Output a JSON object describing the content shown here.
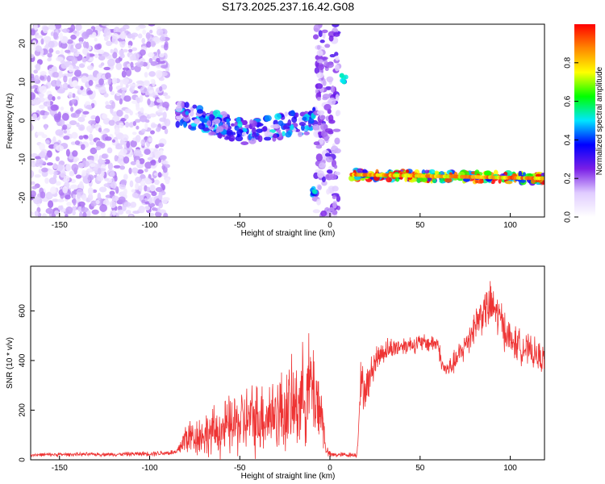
{
  "chart_data": [
    {
      "type": "heatmap",
      "title": "S173.2025.237.16.42.G08",
      "xlabel": "Height of straight line (km)",
      "ylabel": "Frequency (Hz)",
      "xlim": [
        -166,
        119
      ],
      "ylim": [
        -25,
        25
      ],
      "xticks": [
        -150,
        -100,
        -50,
        0,
        50,
        100
      ],
      "yticks": [
        -20,
        -10,
        0,
        10,
        20
      ],
      "colorbar": {
        "label": "Normalized spectral amplitude",
        "range": [
          0,
          1
        ],
        "ticks": [
          "0.0",
          "0.2",
          "0.4",
          "0.6",
          "0.8"
        ],
        "tick_values": [
          0,
          0.2,
          0.4,
          0.6,
          0.8
        ]
      },
      "features": [
        {
          "name": "noise region",
          "x_range": [
            -166,
            -90
          ],
          "freq_range": [
            -25,
            25
          ],
          "amplitude": 0.1
        },
        {
          "name": "wandering line",
          "x_range": [
            -85,
            -8
          ],
          "freq_start": 2,
          "freq_mid": -3,
          "freq_end": 0,
          "amplitude": 0.35
        },
        {
          "name": "spike near zero",
          "x_range": [
            -8,
            5
          ],
          "freq_range": [
            -25,
            25
          ],
          "amplitude": 0.15
        },
        {
          "name": "line at -18 Hz",
          "x": -9,
          "freq": -18.5,
          "amplitude": 0.45
        },
        {
          "name": "line at 11 Hz",
          "x": 8,
          "freq": 11,
          "amplitude": 0.5
        },
        {
          "name": "steady line",
          "x_range": [
            12,
            119
          ],
          "freq_start": -14,
          "freq_end": -15,
          "amplitude": 0.95
        }
      ],
      "colors": {
        "colormap": [
          "#ffffff",
          "#e0ccff",
          "#7a1fe6",
          "#0000ff",
          "#00e6ff",
          "#00ff00",
          "#ffff00",
          "#ff8800",
          "#ff0000"
        ]
      }
    },
    {
      "type": "line",
      "xlabel": "Height of straight line (km)",
      "ylabel": "SNR (10 * v/v)",
      "xlim": [
        -166,
        119
      ],
      "ylim": [
        0,
        780
      ],
      "xticks": [
        -150,
        -100,
        -50,
        0,
        50,
        100
      ],
      "yticks": [
        0,
        200,
        400,
        600
      ],
      "series": [
        {
          "name": "SNR",
          "color": "#ee3333",
          "x": [
            -166,
            -140,
            -120,
            -100,
            -85,
            -80,
            -70,
            -60,
            -50,
            -40,
            -30,
            -20,
            -15,
            -10,
            -5,
            -2,
            0,
            5,
            10,
            15,
            17,
            20,
            25,
            30,
            40,
            50,
            60,
            62,
            65,
            70,
            75,
            80,
            85,
            90,
            95,
            100,
            110,
            119
          ],
          "values": [
            20,
            22,
            22,
            25,
            30,
            90,
            100,
            120,
            150,
            170,
            190,
            210,
            260,
            300,
            200,
            40,
            20,
            20,
            20,
            20,
            300,
            280,
            400,
            440,
            460,
            470,
            470,
            380,
            360,
            400,
            460,
            540,
            600,
            620,
            560,
            480,
            440,
            400
          ],
          "noise": [
            6,
            6,
            6,
            8,
            10,
            60,
            70,
            90,
            110,
            120,
            130,
            150,
            160,
            180,
            120,
            20,
            10,
            8,
            8,
            8,
            80,
            60,
            50,
            40,
            30,
            30,
            30,
            30,
            30,
            40,
            50,
            60,
            70,
            80,
            70,
            60,
            50,
            50
          ]
        }
      ]
    }
  ]
}
